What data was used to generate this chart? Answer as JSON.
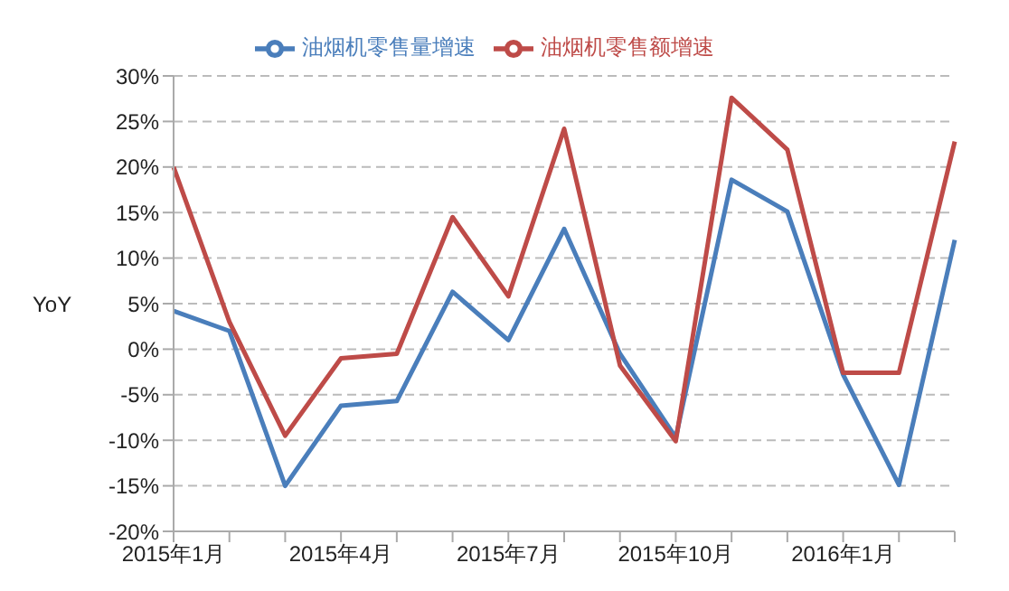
{
  "chart_data": {
    "type": "line",
    "ylabel": "YoY",
    "categories": [
      "2015年1月",
      null,
      null,
      "2015年4月",
      null,
      null,
      "2015年7月",
      null,
      null,
      "2015年10月",
      null,
      null,
      "2016年1月",
      null,
      null
    ],
    "series": [
      {
        "name": "油烟机零售量增速",
        "color": "#4a7ebb",
        "values": [
          4.2,
          2,
          -15,
          -6.2,
          -5.7,
          6.3,
          1,
          13.2,
          -0.5,
          -9.7,
          18.6,
          15.1,
          -2.8,
          -14.9,
          12
        ]
      },
      {
        "name": "油烟机零售额增速",
        "color": "#be4b48",
        "values": [
          20,
          3,
          -9.5,
          -1,
          -0.5,
          14.5,
          5.8,
          24.2,
          -1.8,
          -10.1,
          27.6,
          21.9,
          -2.6,
          -2.6,
          22.8
        ]
      }
    ],
    "ylim": [
      -20,
      30
    ],
    "yticks": [
      {
        "value": -20,
        "label": "-20%"
      },
      {
        "value": -15,
        "label": "-15%"
      },
      {
        "value": -10,
        "label": "-10%"
      },
      {
        "value": -5,
        "label": "-5%"
      },
      {
        "value": 0,
        "label": "0%"
      },
      {
        "value": 5,
        "label": "5%"
      },
      {
        "value": 10,
        "label": "10%"
      },
      {
        "value": 15,
        "label": "15%"
      },
      {
        "value": 20,
        "label": "20%"
      },
      {
        "value": 25,
        "label": "25%"
      },
      {
        "value": 30,
        "label": "30%"
      }
    ],
    "grid": "y",
    "legend": "top",
    "marker": "none",
    "line_style": "solid"
  }
}
